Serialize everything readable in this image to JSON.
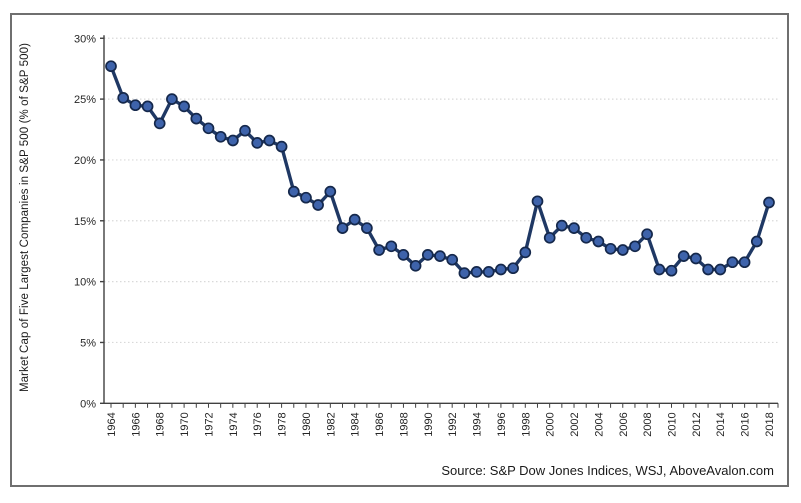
{
  "chart_data": {
    "type": "line",
    "title": "",
    "ylabel": "Market Cap of Five Largest Companies in S&P 500 (% of S&P 500)",
    "xlabel": "",
    "source": "Source: S&P Dow Jones Indices, WSJ, AboveAvalon.com",
    "x": [
      1964,
      1965,
      1966,
      1967,
      1968,
      1969,
      1970,
      1971,
      1972,
      1973,
      1974,
      1975,
      1976,
      1977,
      1978,
      1979,
      1980,
      1981,
      1982,
      1983,
      1984,
      1985,
      1986,
      1987,
      1988,
      1989,
      1990,
      1991,
      1992,
      1993,
      1994,
      1995,
      1996,
      1997,
      1998,
      1999,
      2000,
      2001,
      2002,
      2003,
      2004,
      2005,
      2006,
      2007,
      2008,
      2009,
      2010,
      2011,
      2012,
      2013,
      2014,
      2015,
      2016,
      2017,
      2018
    ],
    "values": [
      27.7,
      25.1,
      24.5,
      24.4,
      23.0,
      25.0,
      24.4,
      23.4,
      22.6,
      21.9,
      21.6,
      22.4,
      21.4,
      21.6,
      21.1,
      17.4,
      16.9,
      16.3,
      17.4,
      14.4,
      15.1,
      14.4,
      12.6,
      12.9,
      12.2,
      11.3,
      12.2,
      12.1,
      11.8,
      10.7,
      10.8,
      10.8,
      11.0,
      11.1,
      12.4,
      16.6,
      13.6,
      14.6,
      14.4,
      13.6,
      13.3,
      12.7,
      12.6,
      12.9,
      13.9,
      11.0,
      10.9,
      12.1,
      11.9,
      11.0,
      11.0,
      11.6,
      11.6,
      13.3,
      16.5
    ],
    "ylim": [
      0,
      30
    ],
    "ytick_step": 5,
    "y_tick_labels": [
      "0%",
      "5%",
      "10%",
      "15%",
      "20%",
      "25%",
      "30%"
    ],
    "x_tick_labels": [
      "1964",
      "1966",
      "1968",
      "1970",
      "1972",
      "1974",
      "1976",
      "1978",
      "1980",
      "1982",
      "1984",
      "1986",
      "1988",
      "1990",
      "1992",
      "1994",
      "1996",
      "1998",
      "2000",
      "2002",
      "2004",
      "2006",
      "2008",
      "2010",
      "2012",
      "2014",
      "2016",
      "2018"
    ],
    "x_label_every": 2,
    "grid": "horizontal-dotted",
    "legend": "none",
    "marker": "circle"
  },
  "colors": {
    "line": "#1f3864",
    "marker_fill": "#3e63ab",
    "marker_stroke": "#15284b",
    "grid": "#d9d9d9",
    "axis": "#404040",
    "text": "#262626",
    "border": "#6f6f6f",
    "background": "#ffffff"
  }
}
